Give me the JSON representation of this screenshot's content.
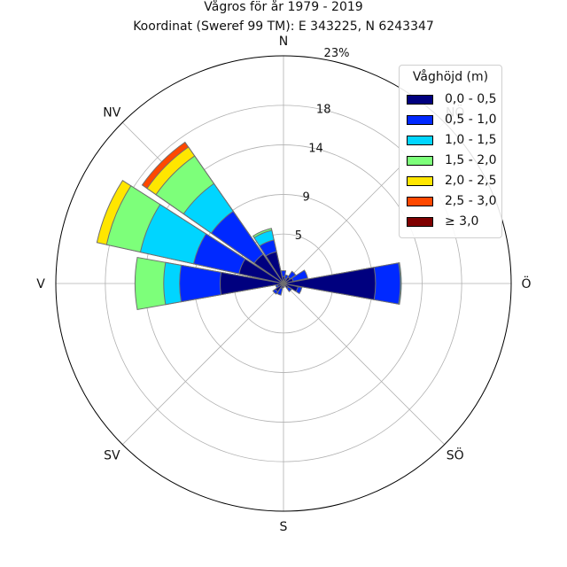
{
  "chart_data": {
    "type": "wind_rose",
    "title": "Vågros för år 1979 - 2019",
    "subtitle": "Koordinat (Sweref 99 TM): E 343225, N 6243347",
    "directions": [
      "N",
      "NNÖ",
      "NÖ",
      "ÖNÖ",
      "Ö",
      "ÖSÖ",
      "SÖ",
      "SSÖ",
      "S",
      "SSV",
      "SV",
      "VSV",
      "V",
      "VNV",
      "NV",
      "NNV"
    ],
    "direction_labels": [
      "N",
      "NÖ",
      "Ö",
      "SÖ",
      "S",
      "SV",
      "V",
      "NV"
    ],
    "radial_ticks": [
      5,
      9,
      14,
      18
    ],
    "radial_ticks_max_label": "23%",
    "rmax": 23,
    "legend_title": "Våghöjd (m)",
    "legend_placement": "top-right",
    "series": [
      {
        "name": "0,0 - 0,5",
        "color": "#00007f"
      },
      {
        "name": "0,5 - 1,0",
        "color": "#0029ff"
      },
      {
        "name": "1,0 - 1,5",
        "color": "#00d5ff"
      },
      {
        "name": "1,5 - 2,0",
        "color": "#7dff7a"
      },
      {
        "name": "2,0 - 2,5",
        "color": "#ffe600"
      },
      {
        "name": "2,5 - 3,0",
        "color": "#ff4800"
      },
      {
        "name": "≥ 3,0",
        "color": "#7f0000"
      }
    ],
    "cumulative_values": [
      [
        0.7,
        1.3,
        0,
        0,
        0,
        0,
        0
      ],
      [
        0.5,
        0.9,
        0,
        0,
        0,
        0,
        0
      ],
      [
        0.8,
        1.5,
        0,
        0,
        0,
        0,
        0
      ],
      [
        1.0,
        2.5,
        0,
        0,
        0,
        0,
        0
      ],
      [
        9.3,
        11.8,
        11.9,
        0,
        0,
        0,
        0
      ],
      [
        1.5,
        1.9,
        0,
        0,
        0,
        0,
        0
      ],
      [
        0.6,
        1.0,
        0,
        0,
        0,
        0,
        0
      ],
      [
        0.2,
        0.3,
        0,
        0,
        0,
        0,
        0
      ],
      [
        0.2,
        0.4,
        0,
        0,
        0,
        0,
        0
      ],
      [
        0.5,
        1.2,
        0,
        0,
        0,
        0,
        0
      ],
      [
        1.0,
        1.3,
        0,
        0,
        0,
        0,
        0
      ],
      [
        0.6,
        0.8,
        0,
        0,
        0,
        0,
        0
      ],
      [
        6.4,
        10.5,
        12.1,
        15.0,
        0,
        0,
        0
      ],
      [
        4.6,
        9.3,
        14.8,
        18.3,
        19.3,
        0,
        0
      ],
      [
        3.6,
        8.9,
        12.3,
        15.7,
        16.8,
        17.4,
        0
      ],
      [
        3.3,
        4.5,
        5.5,
        5.7,
        0,
        0,
        0
      ]
    ]
  }
}
